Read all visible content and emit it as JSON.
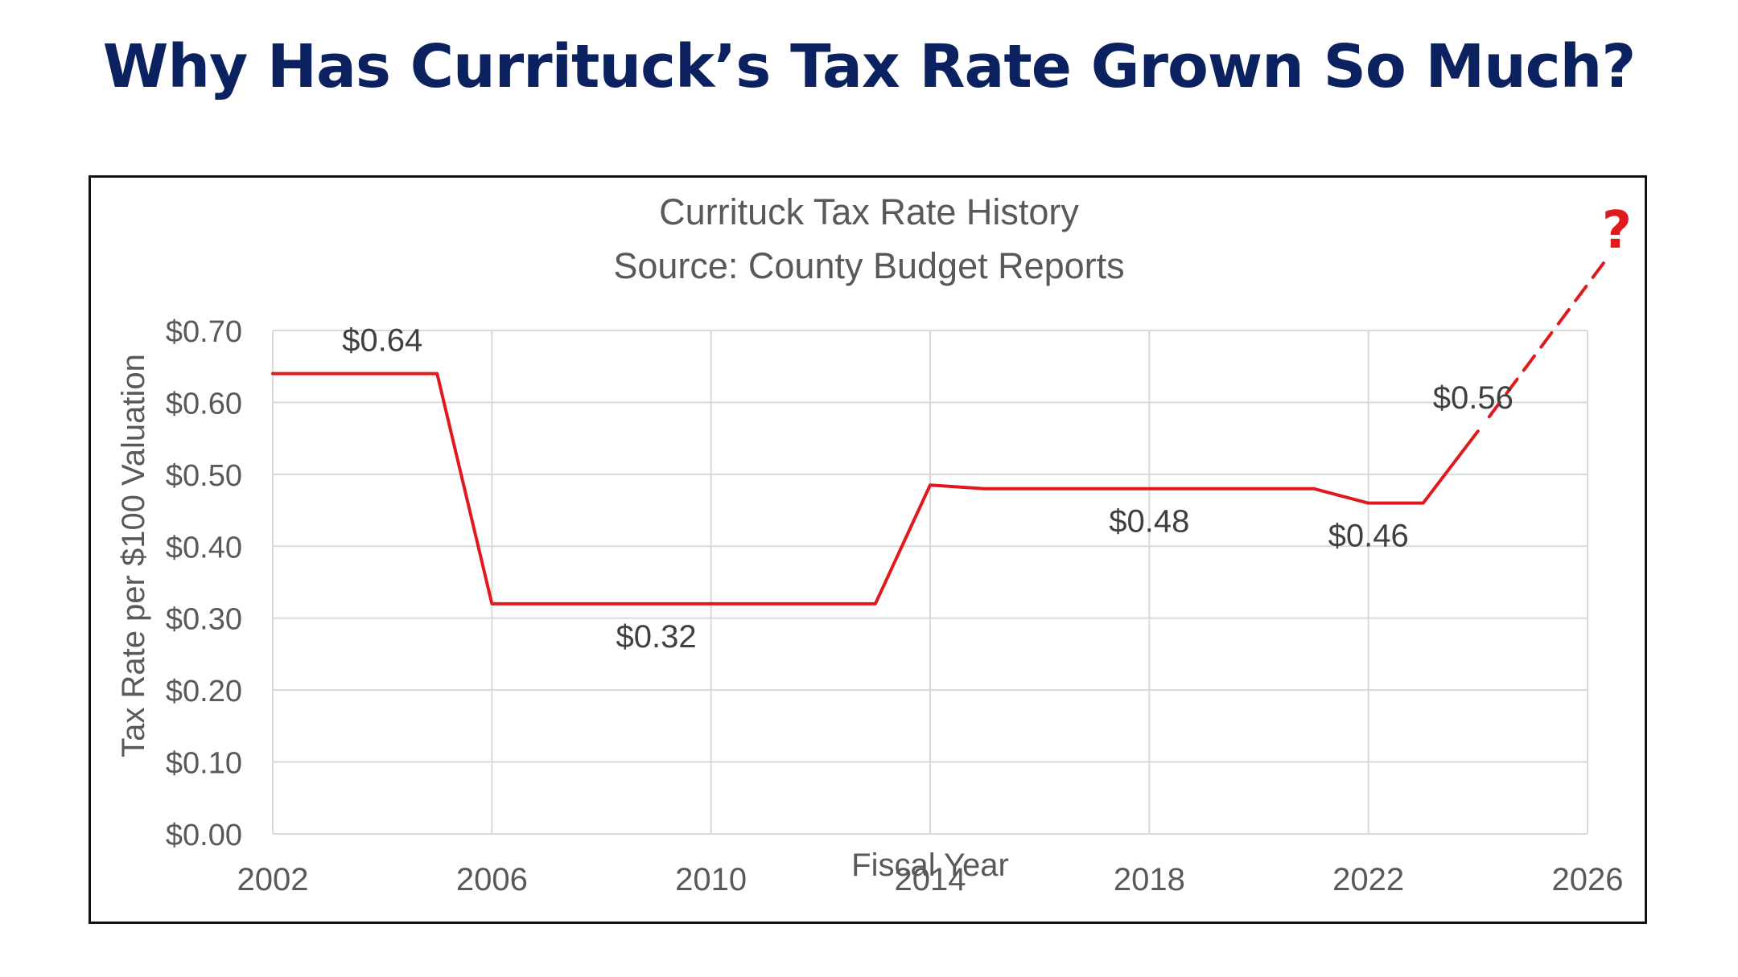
{
  "headline": "Why Has Currituck’s Tax Rate Grown So Much?",
  "colors": {
    "headline": "#0b2160",
    "series": "#e0191c",
    "projection": "#e0191c",
    "question_mark": "#e0191c",
    "text": "#595959",
    "data_label": "#404040",
    "grid": "#d9d9d9"
  },
  "chart_data": {
    "type": "line",
    "title": "Currituck Tax Rate History",
    "subtitle": "Source: County Budget Reports",
    "xlabel": "Fiscal Year",
    "ylabel": "Tax Rate per $100 Valuation",
    "xlim": [
      2002,
      2026
    ],
    "ylim": [
      0,
      0.7
    ],
    "grid": true,
    "x_ticks": [
      2002,
      2006,
      2010,
      2014,
      2018,
      2022,
      2026
    ],
    "x_tick_labels": [
      "2002",
      "2006",
      "2010",
      "2014",
      "2018",
      "2022",
      "2026"
    ],
    "y_ticks": [
      0,
      0.1,
      0.2,
      0.3,
      0.4,
      0.5,
      0.6,
      0.7
    ],
    "y_tick_labels": [
      "$0.00",
      "$0.10",
      "$0.20",
      "$0.30",
      "$0.40",
      "$0.50",
      "$0.60",
      "$0.70"
    ],
    "series": [
      {
        "x": [
          2002,
          2003,
          2004,
          2005,
          2006,
          2007,
          2008,
          2009,
          2010,
          2011,
          2012,
          2013,
          2014,
          2015,
          2016,
          2017,
          2018,
          2019,
          2020,
          2021,
          2022,
          2023,
          2024
        ],
        "y": [
          0.64,
          0.64,
          0.64,
          0.64,
          0.32,
          0.32,
          0.32,
          0.32,
          0.32,
          0.32,
          0.32,
          0.32,
          0.485,
          0.48,
          0.48,
          0.48,
          0.48,
          0.48,
          0.48,
          0.48,
          0.46,
          0.46,
          0.56
        ]
      }
    ],
    "projection": {
      "style": "dashed",
      "x": [
        2024,
        2026.3
      ],
      "y": [
        0.56,
        0.82
      ],
      "annotation": "?"
    },
    "data_labels": [
      {
        "x": 2004,
        "y": 0.64,
        "text": "$0.64",
        "position": "above"
      },
      {
        "x": 2009,
        "y": 0.32,
        "text": "$0.32",
        "position": "below"
      },
      {
        "x": 2018,
        "y": 0.48,
        "text": "$0.48",
        "position": "below"
      },
      {
        "x": 2022,
        "y": 0.46,
        "text": "$0.46",
        "position": "below"
      },
      {
        "x": 2024,
        "y": 0.56,
        "text": "$0.56",
        "position": "above-left"
      }
    ]
  }
}
